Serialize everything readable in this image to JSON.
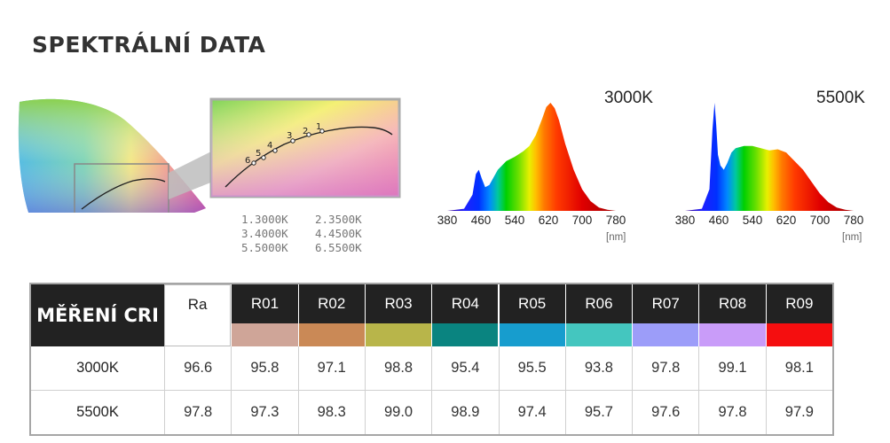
{
  "page": {
    "title": "SPEKTRÁLNÍ DATA"
  },
  "cie": {
    "point_labels": [
      "1",
      "2",
      "3",
      "4",
      "5",
      "6"
    ],
    "legend_left": [
      "1.3000K",
      "3.4000K",
      "5.5000K"
    ],
    "legend_right": [
      "2.3500K",
      "4.4500K",
      "6.5500K"
    ]
  },
  "spectra": {
    "unit": "[nm]",
    "ticks": [
      "380",
      "460",
      "540",
      "620",
      "700",
      "780"
    ]
  },
  "chart_data": [
    {
      "type": "area",
      "title": "3000K",
      "xlabel": "[nm]",
      "xlim": [
        380,
        780
      ],
      "x": [
        380,
        420,
        440,
        448,
        455,
        462,
        470,
        480,
        500,
        520,
        540,
        560,
        575,
        590,
        605,
        615,
        625,
        635,
        645,
        660,
        680,
        700,
        720,
        740,
        760,
        780
      ],
      "y": [
        0,
        0.02,
        0.15,
        0.34,
        0.38,
        0.3,
        0.22,
        0.24,
        0.38,
        0.46,
        0.5,
        0.55,
        0.6,
        0.7,
        0.85,
        0.96,
        1.0,
        0.95,
        0.84,
        0.62,
        0.38,
        0.2,
        0.09,
        0.03,
        0.01,
        0
      ]
    },
    {
      "type": "area",
      "title": "5500K",
      "xlabel": "[nm]",
      "xlim": [
        380,
        780
      ],
      "x": [
        380,
        420,
        438,
        445,
        450,
        454,
        458,
        464,
        472,
        480,
        490,
        500,
        520,
        540,
        560,
        580,
        600,
        620,
        640,
        660,
        680,
        700,
        720,
        740,
        760,
        780
      ],
      "y": [
        0,
        0.02,
        0.2,
        0.75,
        1.0,
        0.8,
        0.52,
        0.42,
        0.38,
        0.44,
        0.54,
        0.58,
        0.6,
        0.6,
        0.58,
        0.56,
        0.57,
        0.54,
        0.46,
        0.38,
        0.27,
        0.16,
        0.08,
        0.03,
        0.01,
        0
      ]
    },
    {
      "type": "table",
      "corner": "MĚŘENÍ CRI",
      "columns": [
        "Ra",
        "R01",
        "R02",
        "R03",
        "R04",
        "R05",
        "R06",
        "R07",
        "R08",
        "R09"
      ],
      "swatch_colors": [
        "#ffffff",
        "#cfa598",
        "#ca8956",
        "#b8b54a",
        "#0a8480",
        "#179dce",
        "#44c6bf",
        "#9c9df9",
        "#c99cf9",
        "#f50e0f"
      ],
      "rows": [
        {
          "label": "3000K",
          "values": [
            "96.6",
            "95.8",
            "97.1",
            "98.8",
            "95.4",
            "95.5",
            "93.8",
            "97.8",
            "99.1",
            "98.1"
          ]
        },
        {
          "label": "5500K",
          "values": [
            "97.8",
            "97.3",
            "98.3",
            "99.0",
            "98.9",
            "97.4",
            "95.7",
            "97.6",
            "97.8",
            "97.9"
          ]
        }
      ]
    }
  ]
}
